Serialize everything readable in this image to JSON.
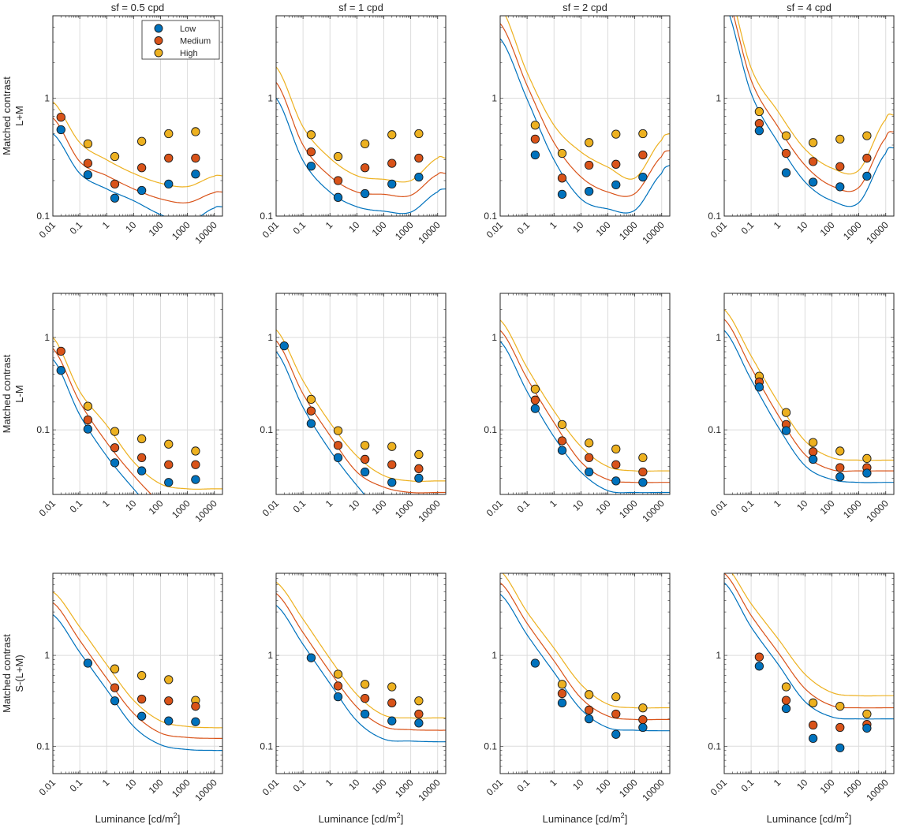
{
  "colors": {
    "Low": "#0072bd",
    "Medium": "#d95319",
    "High": "#edb120",
    "grid": "#dcdcdc",
    "axis": "#262626"
  },
  "chart_data": {
    "type": "scatter",
    "layout": "3x4 grid of log-log panels (scatter points with model fit lines)",
    "columns": [
      "sf = 0.5 cpd",
      "sf = 1 cpd",
      "sf = 2 cpd",
      "sf = 4 cpd"
    ],
    "rows": [
      {
        "ylabel_line1": "Matched contrast",
        "ylabel_line2": "L+M",
        "ylim": [
          0.1,
          5
        ],
        "yticks": [
          0.1,
          1
        ],
        "ytick_labels": [
          "0.1",
          "1"
        ]
      },
      {
        "ylabel_line1": "Matched contrast",
        "ylabel_line2": "L-M",
        "ylim": [
          0.02,
          3
        ],
        "yticks": [
          0.1,
          1
        ],
        "ytick_labels": [
          "0.1",
          "1"
        ]
      },
      {
        "ylabel_line1": "Matched contrast",
        "ylabel_line2": "S-(L+M)",
        "ylim": [
          0.05,
          8
        ],
        "yticks": [
          0.1,
          1
        ],
        "ytick_labels": [
          "0.1",
          "1"
        ]
      }
    ],
    "xlabel": "Luminance [cd/m",
    "xlabel_sup": "2",
    "xlabel_end": "]",
    "xscale": "log",
    "yscale": "log",
    "xlim": [
      0.01,
      20000
    ],
    "xticks": [
      0.01,
      0.1,
      1,
      10,
      100,
      1000,
      10000
    ],
    "xtick_labels": [
      "0.01",
      "0.1",
      "1",
      "10",
      "100",
      "1000",
      "10000"
    ],
    "grid": true,
    "legend": {
      "placement": "top-right of first panel",
      "entries": [
        "Low",
        "Medium",
        "High"
      ]
    },
    "curve_x": [
      0.01,
      0.1,
      1,
      10,
      100,
      1000,
      10000,
      20000
    ],
    "panels": [
      [
        {
          "points": {
            "x": [
              0.02,
              0.2,
              2,
              20,
              200,
              2000
            ],
            "Low": [
              0.54,
              0.224,
              0.142,
              0.165,
              0.187,
              0.227
            ],
            "Medium": [
              0.69,
              0.28,
              0.187,
              0.257,
              0.31,
              0.31
            ],
            "High": [
              null,
              0.41,
              0.32,
              0.43,
              0.5,
              0.52
            ]
          },
          "curves": {
            "Low": [
              0.5,
              0.23,
              0.17,
              0.135,
              0.103,
              0.088,
              0.117,
              0.12
            ],
            "Medium": [
              0.68,
              0.29,
              0.22,
              0.17,
              0.14,
              0.13,
              0.158,
              0.16
            ],
            "High": [
              0.93,
              0.42,
              0.3,
              0.23,
              0.19,
              0.178,
              0.218,
              0.22
            ]
          }
        },
        {
          "points": {
            "x": [
              0.02,
              0.2,
              2,
              20,
              200,
              2000
            ],
            "Low": [
              null,
              0.265,
              0.144,
              0.155,
              0.187,
              0.214
            ],
            "Medium": [
              null,
              0.35,
              0.2,
              0.257,
              0.28,
              0.31
            ],
            "High": [
              null,
              0.49,
              0.32,
              0.41,
              0.49,
              0.5
            ]
          },
          "curves": {
            "Low": [
              1.0,
              0.295,
              0.16,
              0.12,
              0.11,
              0.108,
              0.16,
              0.17
            ],
            "Medium": [
              1.36,
              0.4,
              0.218,
              0.16,
              0.153,
              0.15,
              0.225,
              0.23
            ],
            "High": [
              1.84,
              0.57,
              0.31,
              0.22,
              0.205,
              0.2,
              0.31,
              0.31
            ]
          }
        },
        {
          "points": {
            "x": [
              0.02,
              0.2,
              2,
              20,
              200,
              2000
            ],
            "Low": [
              null,
              0.33,
              0.153,
              0.162,
              0.184,
              0.214
            ],
            "Medium": [
              null,
              0.45,
              0.21,
              0.27,
              0.275,
              0.33
            ],
            "High": [
              null,
              0.59,
              0.34,
              0.42,
              0.495,
              0.5
            ]
          },
          "curves": {
            "Low": [
              3.2,
              0.98,
              0.3,
              0.14,
              0.115,
              0.112,
              0.23,
              0.27
            ],
            "Medium": [
              4.3,
              1.28,
              0.42,
              0.215,
              0.16,
              0.155,
              0.32,
              0.36
            ],
            "High": [
              6.0,
              1.65,
              0.59,
              0.35,
              0.26,
              0.21,
              0.44,
              0.5
            ]
          }
        },
        {
          "points": {
            "x": [
              0.02,
              0.2,
              2,
              20,
              200,
              2000
            ],
            "Low": [
              null,
              0.53,
              0.233,
              0.194,
              0.177,
              0.218
            ],
            "Medium": [
              null,
              0.61,
              0.34,
              0.29,
              0.263,
              0.31
            ],
            "High": [
              null,
              0.77,
              0.48,
              0.42,
              0.45,
              0.48
            ]
          },
          "curves": {
            "Low": [
              6.5,
              1.1,
              0.42,
              0.195,
              0.135,
              0.13,
              0.34,
              0.38
            ],
            "Medium": [
              8.5,
              1.42,
              0.57,
              0.27,
              0.18,
              0.175,
              0.46,
              0.52
            ],
            "High": [
              11.0,
              1.8,
              0.77,
              0.37,
              0.255,
              0.245,
              0.66,
              0.72
            ]
          }
        }
      ],
      [
        {
          "points": {
            "x": [
              0.02,
              0.2,
              2,
              20,
              200,
              2000
            ],
            "Low": [
              0.44,
              0.102,
              0.044,
              0.036,
              0.027,
              0.029
            ],
            "Medium": [
              0.71,
              0.128,
              0.064,
              0.05,
              0.042,
              0.042
            ],
            "High": [
              null,
              0.18,
              0.096,
              0.08,
              0.07,
              0.059
            ]
          },
          "curves": {
            "Low": [
              0.58,
              0.145,
              0.052,
              0.023,
              0.011,
              0.006,
              0.003,
              0.003
            ],
            "Medium": [
              0.76,
              0.2,
              0.073,
              0.032,
              0.016,
              0.009,
              0.005,
              0.005
            ],
            "High": [
              1.0,
              0.26,
              0.112,
              0.045,
              0.026,
              0.023,
              0.023,
              0.023
            ]
          }
        },
        {
          "points": {
            "x": [
              0.02,
              0.2,
              2,
              20,
              200,
              2000
            ],
            "Low": [
              0.81,
              0.117,
              0.05,
              0.035,
              0.027,
              0.03
            ],
            "Medium": [
              null,
              0.16,
              0.068,
              0.048,
              0.042,
              0.038
            ],
            "High": [
              null,
              0.214,
              0.098,
              0.068,
              0.066,
              0.054
            ]
          },
          "curves": {
            "Low": [
              0.7,
              0.175,
              0.06,
              0.025,
              0.012,
              0.008,
              0.006,
              0.006
            ],
            "Medium": [
              0.92,
              0.245,
              0.087,
              0.035,
              0.024,
              0.021,
              0.021,
              0.021
            ],
            "High": [
              1.21,
              0.34,
              0.12,
              0.052,
              0.032,
              0.028,
              0.028,
              0.028
            ]
          }
        },
        {
          "points": {
            "x": [
              0.02,
              0.2,
              2,
              20,
              200,
              2000
            ],
            "Low": [
              null,
              0.17,
              0.06,
              0.035,
              0.028,
              0.027
            ],
            "Medium": [
              null,
              0.21,
              0.076,
              0.05,
              0.042,
              0.035
            ],
            "High": [
              null,
              0.276,
              0.114,
              0.072,
              0.062,
              0.05
            ]
          },
          "curves": {
            "Low": [
              0.905,
              0.26,
              0.084,
              0.035,
              0.022,
              0.021,
              0.021,
              0.021
            ],
            "Medium": [
              1.19,
              0.36,
              0.12,
              0.045,
              0.029,
              0.027,
              0.027,
              0.027
            ],
            "High": [
              1.54,
              0.47,
              0.16,
              0.066,
              0.04,
              0.036,
              0.036,
              0.036
            ]
          }
        },
        {
          "points": {
            "x": [
              0.02,
              0.2,
              2,
              20,
              200,
              2000
            ],
            "Low": [
              null,
              0.29,
              0.098,
              0.048,
              0.031,
              0.034
            ],
            "Medium": [
              null,
              0.33,
              0.114,
              0.058,
              0.039,
              0.039
            ],
            "High": [
              null,
              0.38,
              0.154,
              0.073,
              0.059,
              0.049
            ]
          },
          "curves": {
            "Low": [
              1.19,
              0.35,
              0.108,
              0.041,
              0.029,
              0.027,
              0.027,
              0.027
            ],
            "Medium": [
              1.57,
              0.47,
              0.145,
              0.054,
              0.037,
              0.036,
              0.036,
              0.036
            ],
            "High": [
              2.0,
              0.63,
              0.2,
              0.076,
              0.05,
              0.047,
              0.047,
              0.047
            ]
          }
        }
      ],
      [
        {
          "points": {
            "x": [
              0.02,
              0.2,
              2,
              20,
              200,
              2000
            ],
            "Low": [
              null,
              0.82,
              0.316,
              0.214,
              0.19,
              0.186
            ],
            "Medium": [
              null,
              null,
              0.44,
              0.33,
              0.316,
              0.275
            ],
            "High": [
              null,
              null,
              0.71,
              0.6,
              0.54,
              0.32
            ]
          },
          "curves": {
            "Low": [
              2.8,
              1.08,
              0.42,
              0.165,
              0.104,
              0.092,
              0.09,
              0.09
            ],
            "Medium": [
              3.8,
              1.46,
              0.56,
              0.23,
              0.14,
              0.125,
              0.122,
              0.122
            ],
            "High": [
              5.0,
              2.05,
              0.79,
              0.32,
              0.19,
              0.165,
              0.16,
              0.16
            ]
          }
        },
        {
          "points": {
            "x": [
              0.02,
              0.2,
              2,
              20,
              200,
              2000
            ],
            "Low": [
              null,
              0.94,
              0.35,
              0.226,
              0.19,
              0.18
            ],
            "Medium": [
              null,
              null,
              0.46,
              0.336,
              0.3,
              0.226
            ],
            "High": [
              null,
              null,
              0.62,
              0.48,
              0.45,
              0.316
            ]
          },
          "curves": {
            "Low": [
              3.55,
              1.32,
              0.49,
              0.19,
              0.12,
              0.114,
              0.112,
              0.112
            ],
            "Medium": [
              4.8,
              1.78,
              0.66,
              0.27,
              0.165,
              0.152,
              0.15,
              0.15
            ],
            "High": [
              6.4,
              2.5,
              0.92,
              0.37,
              0.22,
              0.205,
              0.205,
              0.205
            ]
          }
        },
        {
          "points": {
            "x": [
              0.02,
              0.2,
              2,
              20,
              200,
              2000
            ],
            "Low": [
              null,
              0.82,
              0.3,
              0.2,
              0.135,
              0.161
            ],
            "Medium": [
              null,
              null,
              0.38,
              0.25,
              0.226,
              0.196
            ],
            "High": [
              null,
              null,
              0.48,
              0.37,
              0.35,
              0.264
            ]
          },
          "curves": {
            "Low": [
              4.7,
              1.68,
              0.65,
              0.255,
              0.16,
              0.15,
              0.148,
              0.148
            ],
            "Medium": [
              6.3,
              2.25,
              0.87,
              0.34,
              0.215,
              0.197,
              0.197,
              0.197
            ],
            "High": [
              8.5,
              3.0,
              1.2,
              0.48,
              0.29,
              0.265,
              0.265,
              0.265
            ]
          }
        },
        {
          "points": {
            "x": [
              0.02,
              0.2,
              2,
              20,
              200,
              2000
            ],
            "Low": [
              null,
              0.76,
              0.26,
              0.122,
              0.096,
              0.158
            ],
            "Medium": [
              null,
              0.96,
              0.32,
              0.171,
              0.161,
              0.174
            ],
            "High": [
              null,
              null,
              0.45,
              0.3,
              0.275,
              0.226
            ]
          },
          "curves": {
            "Low": [
              6.3,
              2.05,
              0.8,
              0.31,
              0.21,
              0.2,
              0.2,
              0.2
            ],
            "Medium": [
              8.0,
              2.75,
              1.08,
              0.43,
              0.28,
              0.265,
              0.265,
              0.265
            ],
            "High": [
              10.0,
              3.7,
              1.52,
              0.62,
              0.39,
              0.36,
              0.36,
              0.36
            ]
          }
        }
      ]
    ]
  }
}
